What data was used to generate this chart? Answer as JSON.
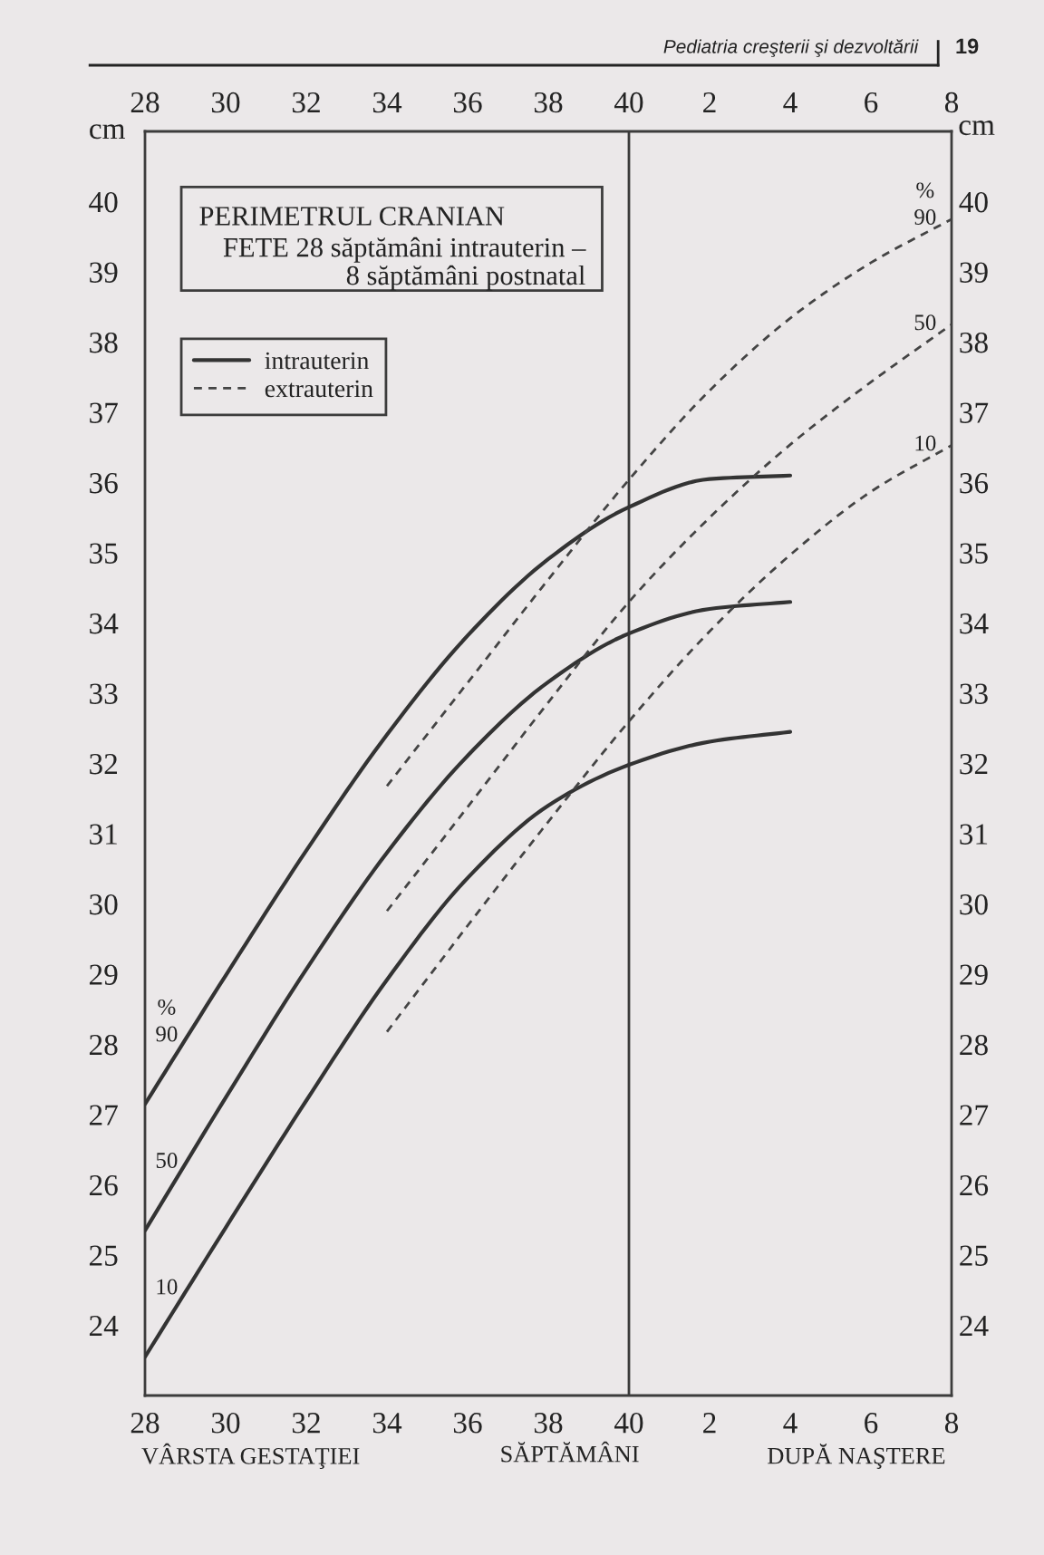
{
  "chart_data": {
    "type": "line",
    "title": "PERIMETRUL CRANIAN",
    "subtitle": "FETE 28 săptămâni intrauterin –\n8 săptămâni postnatal",
    "xlabel": "SĂPTĂMÂNI",
    "y2label": "cm",
    "ylabel": "cm",
    "annotations": [
      "Pediatria creşterii şi dezvoltării",
      "19",
      "VÂRSTA GESTAŢIEI",
      "DUPĂ NAŞTERE",
      {
        "text": "%\n90",
        "x": "28",
        "y": 27.15
      },
      {
        "text": "50",
        "x": "28",
        "y": 25.35
      },
      {
        "text": "10",
        "x": "28",
        "y": 23.55
      },
      {
        "text": "%\n90",
        "x": "8",
        "y": 39.75
      },
      {
        "text": "50",
        "x": "8",
        "y": 38.25
      },
      {
        "text": "10",
        "x": "8",
        "y": 36.53
      }
    ],
    "categories": [
      "28",
      "30",
      "32",
      "34",
      "36",
      "38",
      "40",
      "2",
      "4",
      "6",
      "8"
    ],
    "ylim": [
      23,
      41
    ],
    "yticks": [
      24,
      25,
      26,
      27,
      28,
      29,
      30,
      31,
      32,
      33,
      34,
      35,
      36,
      37,
      38,
      39,
      40
    ],
    "y2lim": [
      23,
      41
    ],
    "y2ticks": [
      24,
      25,
      26,
      27,
      28,
      29,
      30,
      31,
      32,
      33,
      34,
      35,
      36,
      37,
      38,
      39,
      40
    ],
    "ref_lines": [
      {
        "axis": "x",
        "value": "40",
        "color": "#3a3a3a"
      }
    ],
    "legend": "top left",
    "series": [
      {
        "name": "intrauterin",
        "color": "#333333",
        "line_style": "solid",
        "values": [
          27.15,
          28.98,
          30.76,
          32.41,
          33.82,
          34.91,
          35.65,
          36.05,
          36.1,
          null,
          null
        ]
      },
      {
        "color": "#333333",
        "line_style": "solid",
        "values": [
          25.35,
          27.24,
          29.07,
          30.73,
          32.11,
          33.16,
          33.85,
          34.2,
          34.3,
          null,
          null
        ]
      },
      {
        "color": "#333333",
        "line_style": "solid",
        "values": [
          23.55,
          25.39,
          27.2,
          28.92,
          30.37,
          31.4,
          31.98,
          32.31,
          32.45,
          null,
          null
        ]
      },
      {
        "name": "extrauterin",
        "color": "#444444",
        "line_style": "dashed",
        "values": [
          null,
          null,
          null,
          31.68,
          33.15,
          34.62,
          36.04,
          37.31,
          38.34,
          39.13,
          39.75
        ]
      },
      {
        "color": "#444444",
        "line_style": "dashed",
        "values": [
          null,
          null,
          null,
          29.9,
          31.38,
          32.87,
          34.3,
          35.5,
          36.54,
          37.43,
          38.25
        ]
      },
      {
        "color": "#444444",
        "line_style": "dashed",
        "values": [
          null,
          null,
          null,
          28.18,
          29.69,
          31.17,
          32.6,
          33.88,
          34.97,
          35.87,
          36.53
        ]
      }
    ]
  }
}
